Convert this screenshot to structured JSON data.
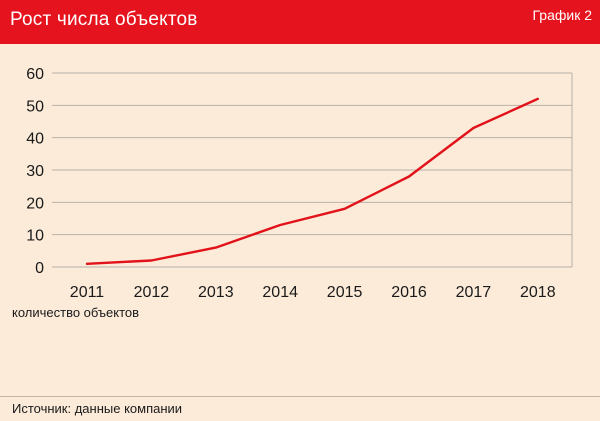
{
  "header": {
    "title": "Рост числа объектов",
    "badge": "График 2"
  },
  "chart_data": {
    "type": "line",
    "title": "Рост числа объектов",
    "xlabel": "",
    "ylabel": "",
    "unit_label": "количество объектов",
    "categories": [
      "2011",
      "2012",
      "2013",
      "2014",
      "2015",
      "2016",
      "2017",
      "2018"
    ],
    "series": [
      {
        "values": [
          1,
          2,
          6,
          13,
          18,
          28,
          43,
          52
        ]
      }
    ],
    "ylim": [
      0,
      60
    ],
    "yticks": [
      0,
      10,
      20,
      30,
      40,
      50,
      60
    ],
    "grid": "horizontal",
    "line_color": "#e2121b",
    "grid_color": "#b9b2aa"
  },
  "source": "Источник: данные компании"
}
